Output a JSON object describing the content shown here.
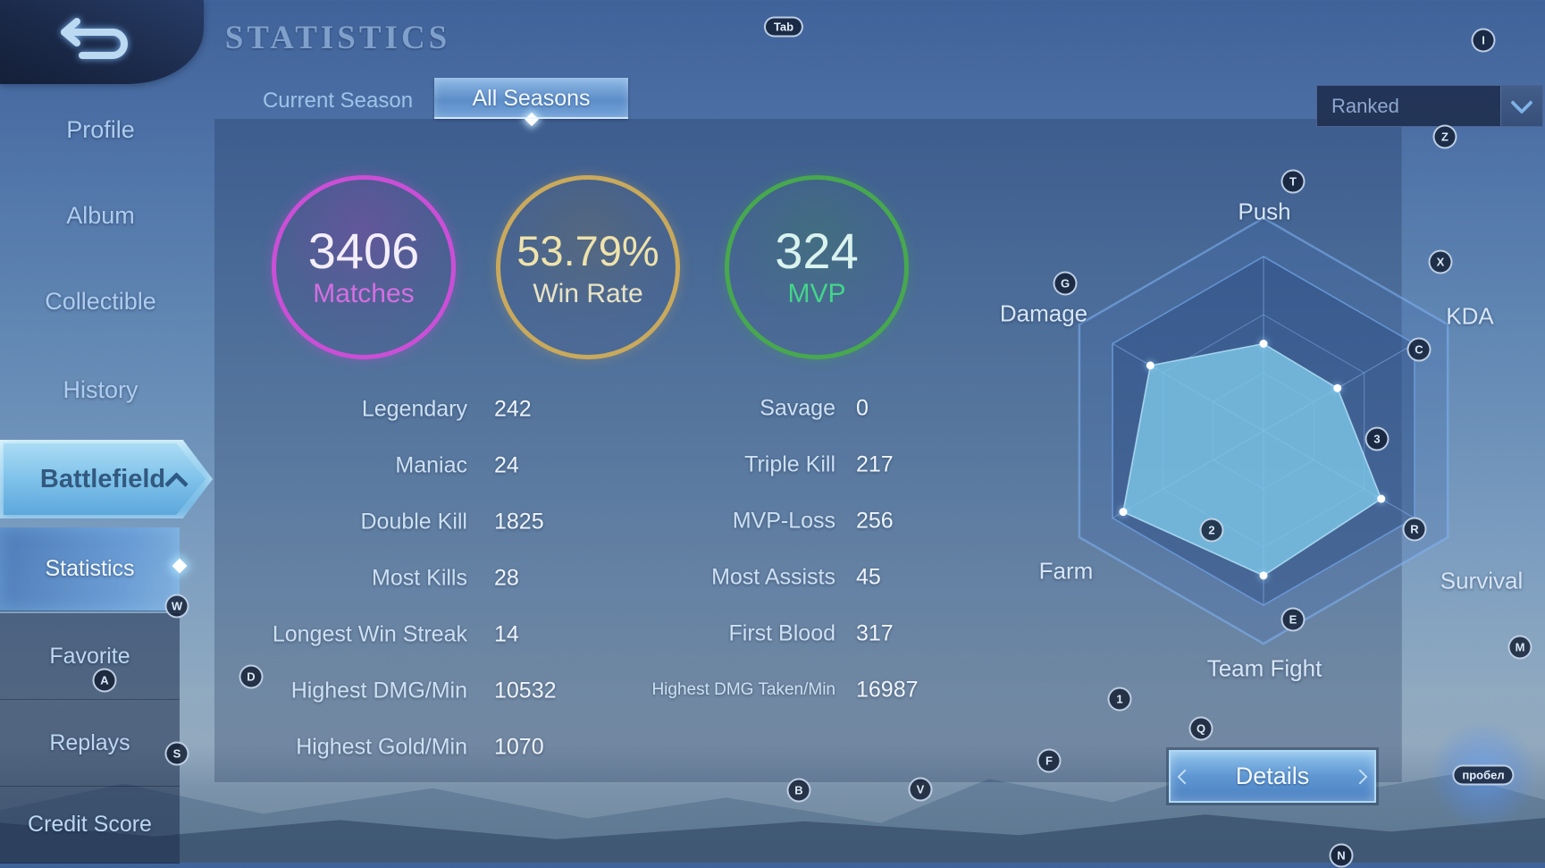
{
  "header": {
    "title": "STATISTICS"
  },
  "tabs": [
    {
      "label": "Current Season",
      "active": false
    },
    {
      "label": "All Seasons",
      "active": true
    }
  ],
  "filter_dropdown": {
    "selected": "Ranked"
  },
  "sidebar": {
    "items": [
      {
        "label": "Profile"
      },
      {
        "label": "Album"
      },
      {
        "label": "Collectible"
      },
      {
        "label": "History"
      },
      {
        "label": "Battlefield",
        "active": true,
        "expanded": true
      }
    ],
    "sub_items": [
      {
        "label": "Statistics",
        "active": true
      },
      {
        "label": "Favorite",
        "active": false
      },
      {
        "label": "Replays",
        "active": false
      },
      {
        "label": "Credit Score",
        "active": false
      }
    ]
  },
  "summary_circles": [
    {
      "value": "3406",
      "label": "Matches",
      "ring_color": "#cb4fd6"
    },
    {
      "value": "53.79%",
      "label": "Win Rate",
      "ring_color": "#c9a95c"
    },
    {
      "value": "324",
      "label": "MVP",
      "ring_color": "#47a84f"
    }
  ],
  "stats_left": [
    {
      "label": "Legendary",
      "value": "242"
    },
    {
      "label": "Maniac",
      "value": "24"
    },
    {
      "label": "Double Kill",
      "value": "1825"
    },
    {
      "label": "Most Kills",
      "value": "28"
    },
    {
      "label": "Longest Win Streak",
      "value": "14"
    },
    {
      "label": "Highest DMG/Min",
      "value": "10532"
    },
    {
      "label": "Highest Gold/Min",
      "value": "1070"
    }
  ],
  "stats_right": [
    {
      "label": "Savage",
      "value": "0"
    },
    {
      "label": "Triple Kill",
      "value": "217"
    },
    {
      "label": "MVP-Loss",
      "value": "256"
    },
    {
      "label": "Most Assists",
      "value": "45"
    },
    {
      "label": "First Blood",
      "value": "317"
    },
    {
      "label": "Highest DMG Taken/Min",
      "value": "16987",
      "small": true
    }
  ],
  "chart_data": {
    "type": "radar",
    "axes": [
      "Push",
      "KDA",
      "Survival",
      "Team Fight",
      "Farm",
      "Damage"
    ],
    "values": [
      0.5,
      0.49,
      0.78,
      0.83,
      0.93,
      0.75
    ],
    "scale_max": 1,
    "rings": 3,
    "fill_color": "#7dc8e8",
    "grid_color": "#7aa6dc"
  },
  "details_button": {
    "label": "Details"
  },
  "key_hints": [
    {
      "key": "Tab",
      "shape": "pill"
    },
    {
      "key": "I",
      "shape": "circle"
    },
    {
      "key": "Z",
      "shape": "circle"
    },
    {
      "key": "T",
      "shape": "circle"
    },
    {
      "key": "X",
      "shape": "circle"
    },
    {
      "key": "G",
      "shape": "circle"
    },
    {
      "key": "C",
      "shape": "circle"
    },
    {
      "key": "3",
      "shape": "circle"
    },
    {
      "key": "R",
      "shape": "circle"
    },
    {
      "key": "2",
      "shape": "circle"
    },
    {
      "key": "E",
      "shape": "circle"
    },
    {
      "key": "M",
      "shape": "circle"
    },
    {
      "key": "W",
      "shape": "circle"
    },
    {
      "key": "A",
      "shape": "circle"
    },
    {
      "key": "S",
      "shape": "circle"
    },
    {
      "key": "D",
      "shape": "circle"
    },
    {
      "key": "1",
      "shape": "circle"
    },
    {
      "key": "Q",
      "shape": "circle"
    },
    {
      "key": "F",
      "shape": "circle"
    },
    {
      "key": "B",
      "shape": "circle"
    },
    {
      "key": "V",
      "shape": "circle"
    },
    {
      "key": "N",
      "shape": "circle"
    },
    {
      "key": "пробел",
      "shape": "pill",
      "glow": true
    }
  ]
}
